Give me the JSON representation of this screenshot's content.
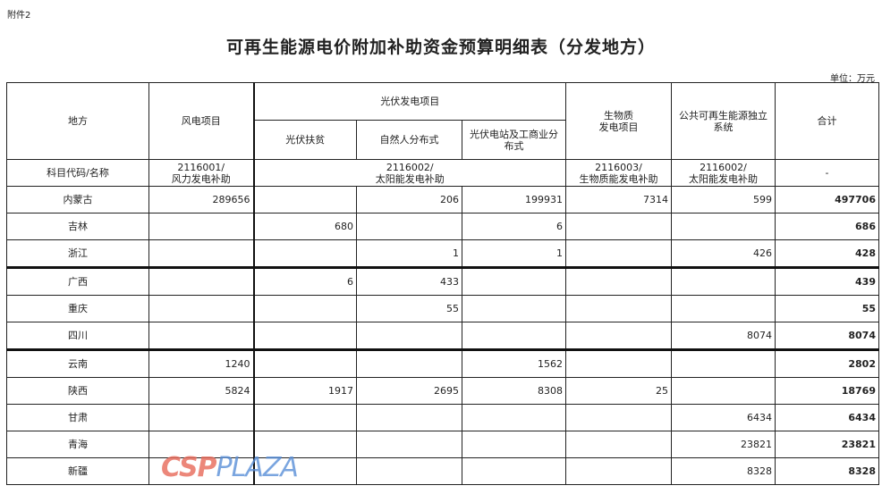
{
  "attachment": "附件2",
  "title": "可再生能源电价附加补助资金预算明细表（分发地方）",
  "unit": "单位：万元",
  "headers": {
    "region": "地方",
    "wind": "风电项目",
    "pv": "光伏发电项目",
    "pv_poverty": "光伏扶贫",
    "pv_natural": "自然人分布式",
    "pv_station": "光伏电站及工商业分布式",
    "biomass": "生物质\n发电项目",
    "public": "公共可再生能源独立系统",
    "total": "合计"
  },
  "codes": {
    "label": "科目代码/名称",
    "wind": "2116001/\n风力发电补助",
    "pv": "2116002/\n太阳能发电补助",
    "biomass": "2116003/\n生物质能发电补助",
    "public": "2116002/\n太阳能发电补助",
    "total": "-"
  },
  "rows": [
    {
      "region": "内蒙古",
      "wind": "289656",
      "pv_poverty": "",
      "pv_natural": "206",
      "pv_station": "199931",
      "biomass": "7314",
      "public": "599",
      "total": "497706"
    },
    {
      "region": "吉林",
      "wind": "",
      "pv_poverty": "680",
      "pv_natural": "",
      "pv_station": "6",
      "biomass": "",
      "public": "",
      "total": "686"
    },
    {
      "region": "浙江",
      "wind": "",
      "pv_poverty": "",
      "pv_natural": "1",
      "pv_station": "1",
      "biomass": "",
      "public": "426",
      "total": "428"
    },
    {
      "region": "广西",
      "wind": "",
      "pv_poverty": "6",
      "pv_natural": "433",
      "pv_station": "",
      "biomass": "",
      "public": "",
      "total": "439"
    },
    {
      "region": "重庆",
      "wind": "",
      "pv_poverty": "",
      "pv_natural": "55",
      "pv_station": "",
      "biomass": "",
      "public": "",
      "total": "55"
    },
    {
      "region": "四川",
      "wind": "",
      "pv_poverty": "",
      "pv_natural": "",
      "pv_station": "",
      "biomass": "",
      "public": "8074",
      "total": "8074"
    },
    {
      "region": "云南",
      "wind": "1240",
      "pv_poverty": "",
      "pv_natural": "",
      "pv_station": "1562",
      "biomass": "",
      "public": "",
      "total": "2802"
    },
    {
      "region": "陕西",
      "wind": "5824",
      "pv_poverty": "1917",
      "pv_natural": "2695",
      "pv_station": "8308",
      "biomass": "25",
      "public": "",
      "total": "18769"
    },
    {
      "region": "甘肃",
      "wind": "",
      "pv_poverty": "",
      "pv_natural": "",
      "pv_station": "",
      "biomass": "",
      "public": "6434",
      "total": "6434"
    },
    {
      "region": "青海",
      "wind": "",
      "pv_poverty": "",
      "pv_natural": "",
      "pv_station": "",
      "biomass": "",
      "public": "23821",
      "total": "23821"
    },
    {
      "region": "新疆",
      "wind": "",
      "pv_poverty": "",
      "pv_natural": "",
      "pv_station": "",
      "biomass": "",
      "public": "8328",
      "total": "8328"
    }
  ],
  "watermark": "CSPPLAZA"
}
